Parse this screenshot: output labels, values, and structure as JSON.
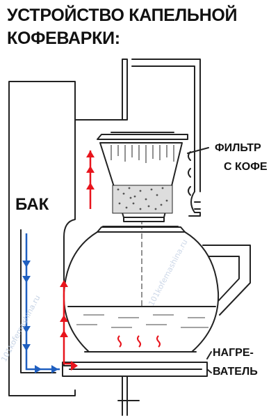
{
  "title": {
    "line1": "УСТРОЙСТВО КАПЕЛЬНОЙ",
    "line2": "КОФЕВАРКИ:"
  },
  "labels": {
    "tank": "БАК",
    "filter_line1": "ФИЛЬТР",
    "filter_line2": "С КОФЕ",
    "heater_line1": "НАГРЕ-",
    "heater_line2": "ВАТЕЛЬ"
  },
  "watermark": "101kofemashina.ru",
  "colors": {
    "hot_water_flow": "#e8141c",
    "cold_water_flow": "#1f5fc0",
    "outline": "#222222"
  },
  "icons": {
    "hot_arrow": "triangle-up",
    "cold_arrow": "triangle-down",
    "heat": "wavy-line"
  }
}
